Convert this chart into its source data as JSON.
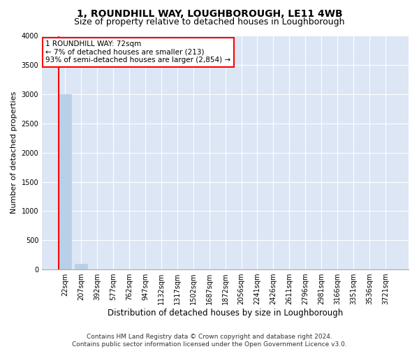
{
  "title": "1, ROUNDHILL WAY, LOUGHBOROUGH, LE11 4WB",
  "subtitle": "Size of property relative to detached houses in Loughborough",
  "xlabel": "Distribution of detached houses by size in Loughborough",
  "ylabel": "Number of detached properties",
  "categories": [
    "22sqm",
    "207sqm",
    "392sqm",
    "577sqm",
    "762sqm",
    "947sqm",
    "1132sqm",
    "1317sqm",
    "1502sqm",
    "1687sqm",
    "1872sqm",
    "2056sqm",
    "2241sqm",
    "2426sqm",
    "2611sqm",
    "2796sqm",
    "2981sqm",
    "3166sqm",
    "3351sqm",
    "3536sqm",
    "3721sqm"
  ],
  "values": [
    3000,
    100,
    0,
    0,
    0,
    0,
    0,
    0,
    0,
    0,
    0,
    0,
    0,
    0,
    0,
    0,
    0,
    0,
    0,
    0,
    0
  ],
  "bar_color": "#b8cfe8",
  "bar_edge_color": "#b8cfe8",
  "red_line_x": 0,
  "ylim": [
    0,
    4000
  ],
  "yticks": [
    0,
    500,
    1000,
    1500,
    2000,
    2500,
    3000,
    3500,
    4000
  ],
  "annotation_text": "1 ROUNDHILL WAY: 72sqm\n← 7% of detached houses are smaller (213)\n93% of semi-detached houses are larger (2,854) →",
  "bg_color": "#dce6f5",
  "grid_color": "white",
  "title_fontsize": 10,
  "subtitle_fontsize": 9,
  "tick_fontsize": 7,
  "ylabel_fontsize": 8,
  "xlabel_fontsize": 8.5,
  "footer_fontsize": 6.5,
  "footer_line1": "Contains HM Land Registry data © Crown copyright and database right 2024.",
  "footer_line2": "Contains public sector information licensed under the Open Government Licence v3.0."
}
